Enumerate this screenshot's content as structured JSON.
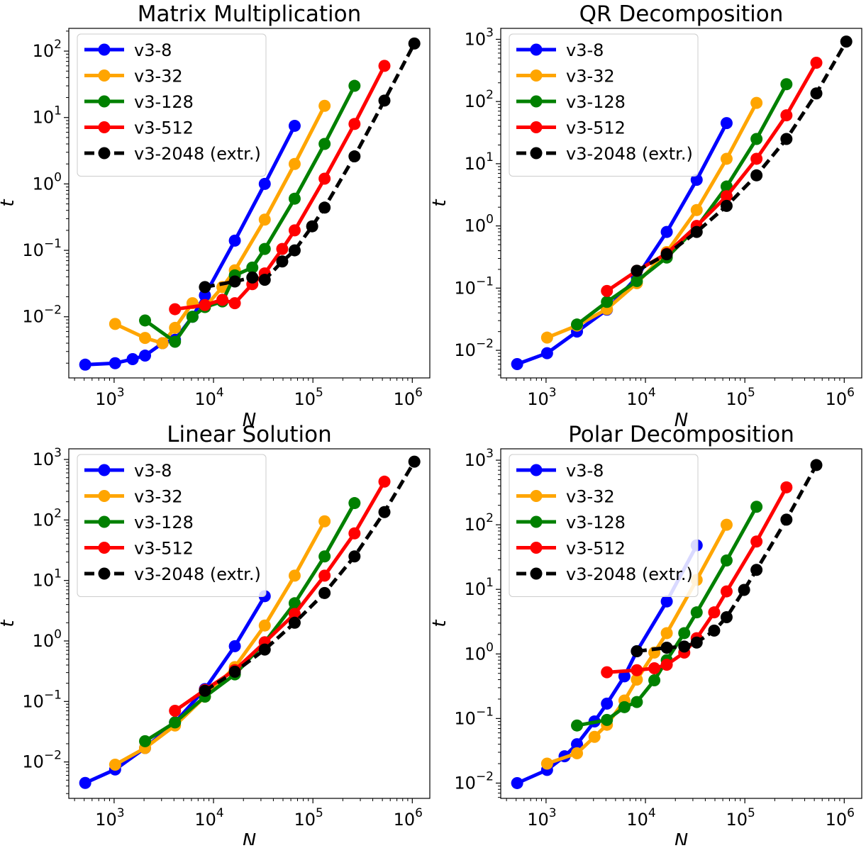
{
  "figure": {
    "background": "#ffffff"
  },
  "chart_data": [
    {
      "type": "line",
      "title": "Matrix Multiplication",
      "xlabel": "N",
      "ylabel": "t",
      "xscale": "log",
      "yscale": "log",
      "xlim": [
        350,
        1500000
      ],
      "ylim": [
        0.0012,
        220
      ],
      "xticks": [
        {
          "value": 1000,
          "label": "10",
          "exp": "3"
        },
        {
          "value": 10000,
          "label": "10",
          "exp": "4"
        },
        {
          "value": 100000,
          "label": "10",
          "exp": "5"
        },
        {
          "value": 1000000,
          "label": "10",
          "exp": "6"
        }
      ],
      "yticks": [
        {
          "value": 0.01,
          "label": "10",
          "exp": "−2"
        },
        {
          "value": 0.1,
          "label": "10",
          "exp": "−1"
        },
        {
          "value": 1,
          "label": "10",
          "exp": "0"
        },
        {
          "value": 10,
          "label": "10",
          "exp": "1"
        },
        {
          "value": 100,
          "label": "10",
          "exp": "2"
        }
      ],
      "grid": false,
      "legend": "top-left",
      "series": [
        {
          "name": "v3-8",
          "color": "#0000ff",
          "dash": false,
          "x": [
            512,
            1024,
            1536,
            2048,
            3072,
            4096,
            6144,
            8192,
            16384,
            32768,
            65536
          ],
          "y": [
            0.0019,
            0.002,
            0.0023,
            0.0026,
            0.004,
            0.0045,
            0.01,
            0.021,
            0.14,
            1.0,
            7.5
          ]
        },
        {
          "name": "v3-32",
          "color": "#ffa500",
          "dash": false,
          "x": [
            1024,
            2048,
            3072,
            4096,
            6144,
            8192,
            12288,
            16384,
            32768,
            65536,
            131072
          ],
          "y": [
            0.0078,
            0.0048,
            0.004,
            0.0068,
            0.016,
            0.014,
            0.028,
            0.05,
            0.29,
            2.0,
            15
          ]
        },
        {
          "name": "v3-128",
          "color": "#008000",
          "dash": false,
          "x": [
            2048,
            4096,
            6144,
            8192,
            12288,
            16384,
            24576,
            32768,
            65536,
            131072,
            262144
          ],
          "y": [
            0.0088,
            0.0042,
            0.01,
            0.014,
            0.017,
            0.042,
            0.055,
            0.105,
            0.6,
            4.0,
            30
          ]
        },
        {
          "name": "v3-512",
          "color": "#ff0000",
          "dash": false,
          "x": [
            4096,
            8192,
            12288,
            16384,
            24576,
            32768,
            49152,
            65536,
            131072,
            262144,
            524288
          ],
          "y": [
            0.013,
            0.015,
            0.018,
            0.016,
            0.031,
            0.045,
            0.105,
            0.2,
            1.2,
            8.0,
            60
          ]
        },
        {
          "name": "v3-2048 (extr.)",
          "color": "#000000",
          "dash": true,
          "x": [
            8192,
            16384,
            24576,
            32768,
            49152,
            65536,
            98304,
            131072,
            262144,
            524288,
            1048576
          ],
          "y": [
            0.028,
            0.034,
            0.039,
            0.036,
            0.068,
            0.1,
            0.23,
            0.44,
            2.6,
            18,
            130
          ]
        }
      ]
    },
    {
      "type": "line",
      "title": "QR Decomposition",
      "xlabel": "N",
      "ylabel": "t",
      "xscale": "log",
      "yscale": "log",
      "xlim": [
        350,
        1500000
      ],
      "ylim": [
        0.0036,
        1500
      ],
      "xticks": [
        {
          "value": 1000,
          "label": "10",
          "exp": "3"
        },
        {
          "value": 10000,
          "label": "10",
          "exp": "4"
        },
        {
          "value": 100000,
          "label": "10",
          "exp": "5"
        },
        {
          "value": 1000000,
          "label": "10",
          "exp": "6"
        }
      ],
      "yticks": [
        {
          "value": 0.01,
          "label": "10",
          "exp": "−2"
        },
        {
          "value": 0.1,
          "label": "10",
          "exp": "−1"
        },
        {
          "value": 1,
          "label": "10",
          "exp": "0"
        },
        {
          "value": 10,
          "label": "10",
          "exp": "1"
        },
        {
          "value": 100,
          "label": "10",
          "exp": "2"
        },
        {
          "value": 1000,
          "label": "10",
          "exp": "3"
        }
      ],
      "grid": false,
      "legend": "top-left",
      "series": [
        {
          "name": "v3-8",
          "color": "#0000ff",
          "dash": false,
          "x": [
            512,
            1024,
            2048,
            4096,
            8192,
            16384,
            32768,
            65536
          ],
          "y": [
            0.006,
            0.009,
            0.02,
            0.045,
            0.15,
            0.8,
            5.5,
            45
          ]
        },
        {
          "name": "v3-32",
          "color": "#ffa500",
          "dash": false,
          "x": [
            1024,
            2048,
            4096,
            8192,
            16384,
            32768,
            65536,
            131072
          ],
          "y": [
            0.016,
            0.025,
            0.046,
            0.12,
            0.38,
            1.8,
            12,
            95
          ]
        },
        {
          "name": "v3-128",
          "color": "#008000",
          "dash": false,
          "x": [
            2048,
            4096,
            8192,
            16384,
            32768,
            65536,
            131072,
            262144
          ],
          "y": [
            0.026,
            0.06,
            0.13,
            0.31,
            0.95,
            4.3,
            25,
            190
          ]
        },
        {
          "name": "v3-512",
          "color": "#ff0000",
          "dash": false,
          "x": [
            4096,
            8192,
            16384,
            32768,
            65536,
            131072,
            262144,
            524288
          ],
          "y": [
            0.09,
            0.19,
            0.36,
            1.0,
            3.0,
            12,
            60,
            420
          ]
        },
        {
          "name": "v3-2048 (extr.)",
          "color": "#000000",
          "dash": true,
          "x": [
            8192,
            16384,
            32768,
            65536,
            131072,
            262144,
            524288,
            1048576
          ],
          "y": [
            0.19,
            0.35,
            0.8,
            2.1,
            6.5,
            25,
            135,
            920
          ]
        }
      ]
    },
    {
      "type": "line",
      "title": "Linear Solution",
      "xlabel": "N",
      "ylabel": "t",
      "xscale": "log",
      "yscale": "log",
      "xlim": [
        350,
        1500000
      ],
      "ylim": [
        0.0025,
        1500
      ],
      "xticks": [
        {
          "value": 1000,
          "label": "10",
          "exp": "3"
        },
        {
          "value": 10000,
          "label": "10",
          "exp": "4"
        },
        {
          "value": 100000,
          "label": "10",
          "exp": "5"
        },
        {
          "value": 1000000,
          "label": "10",
          "exp": "6"
        }
      ],
      "yticks": [
        {
          "value": 0.01,
          "label": "10",
          "exp": "−2"
        },
        {
          "value": 0.1,
          "label": "10",
          "exp": "−1"
        },
        {
          "value": 1,
          "label": "10",
          "exp": "0"
        },
        {
          "value": 10,
          "label": "10",
          "exp": "1"
        },
        {
          "value": 100,
          "label": "10",
          "exp": "2"
        },
        {
          "value": 1000,
          "label": "10",
          "exp": "3"
        }
      ],
      "grid": false,
      "legend": "top-left",
      "series": [
        {
          "name": "v3-8",
          "color": "#0000ff",
          "dash": false,
          "x": [
            512,
            1024,
            2048,
            4096,
            8192,
            16384,
            32768
          ],
          "y": [
            0.0045,
            0.0075,
            0.017,
            0.045,
            0.16,
            0.82,
            5.5
          ]
        },
        {
          "name": "v3-32",
          "color": "#ffa500",
          "dash": false,
          "x": [
            1024,
            2048,
            4096,
            8192,
            16384,
            32768,
            65536,
            131072
          ],
          "y": [
            0.009,
            0.017,
            0.04,
            0.12,
            0.37,
            1.8,
            12,
            95
          ]
        },
        {
          "name": "v3-128",
          "color": "#008000",
          "dash": false,
          "x": [
            2048,
            4096,
            8192,
            16384,
            32768,
            65536,
            131072,
            262144
          ],
          "y": [
            0.022,
            0.045,
            0.12,
            0.28,
            0.95,
            4.2,
            25,
            190
          ]
        },
        {
          "name": "v3-512",
          "color": "#ff0000",
          "dash": false,
          "x": [
            4096,
            8192,
            16384,
            32768,
            65536,
            131072,
            262144,
            524288
          ],
          "y": [
            0.07,
            0.155,
            0.33,
            0.95,
            2.8,
            12,
            60,
            430
          ]
        },
        {
          "name": "v3-2048 (extr.)",
          "color": "#000000",
          "dash": true,
          "x": [
            8192,
            16384,
            32768,
            65536,
            131072,
            262144,
            524288,
            1048576
          ],
          "y": [
            0.15,
            0.31,
            0.72,
            2.0,
            6.2,
            25,
            135,
            920
          ]
        }
      ]
    },
    {
      "type": "line",
      "title": "Polar Decomposition",
      "xlabel": "N",
      "ylabel": "t",
      "xscale": "log",
      "yscale": "log",
      "xlim": [
        350,
        1500000
      ],
      "ylim": [
        0.0058,
        1500
      ],
      "xticks": [
        {
          "value": 1000,
          "label": "10",
          "exp": "3"
        },
        {
          "value": 10000,
          "label": "10",
          "exp": "4"
        },
        {
          "value": 100000,
          "label": "10",
          "exp": "5"
        },
        {
          "value": 1000000,
          "label": "10",
          "exp": "6"
        }
      ],
      "yticks": [
        {
          "value": 0.01,
          "label": "10",
          "exp": "−2"
        },
        {
          "value": 0.1,
          "label": "10",
          "exp": "−1"
        },
        {
          "value": 1,
          "label": "10",
          "exp": "0"
        },
        {
          "value": 10,
          "label": "10",
          "exp": "1"
        },
        {
          "value": 100,
          "label": "10",
          "exp": "2"
        },
        {
          "value": 1000,
          "label": "10",
          "exp": "3"
        }
      ],
      "grid": false,
      "legend": "top-left",
      "series": [
        {
          "name": "v3-8",
          "color": "#0000ff",
          "dash": false,
          "x": [
            512,
            1024,
            1536,
            2048,
            3072,
            4096,
            6144,
            8192,
            16384,
            32768
          ],
          "y": [
            0.01,
            0.016,
            0.026,
            0.04,
            0.09,
            0.17,
            0.45,
            1.1,
            6.5,
            48
          ]
        },
        {
          "name": "v3-32",
          "color": "#ffa500",
          "dash": false,
          "x": [
            1024,
            2048,
            3072,
            4096,
            6144,
            8192,
            12288,
            16384,
            32768,
            65536
          ],
          "y": [
            0.02,
            0.029,
            0.052,
            0.08,
            0.19,
            0.4,
            1.05,
            2.1,
            14,
            100
          ]
        },
        {
          "name": "v3-128",
          "color": "#008000",
          "dash": false,
          "x": [
            2048,
            4096,
            6144,
            8192,
            12288,
            16384,
            24576,
            32768,
            65536,
            131072
          ],
          "y": [
            0.078,
            0.095,
            0.15,
            0.18,
            0.39,
            0.8,
            2.1,
            4.4,
            28,
            190
          ]
        },
        {
          "name": "v3-512",
          "color": "#ff0000",
          "dash": false,
          "x": [
            4096,
            8192,
            12288,
            16384,
            24576,
            32768,
            49152,
            65536,
            131072,
            262144
          ],
          "y": [
            0.52,
            0.56,
            0.6,
            0.68,
            1.05,
            1.75,
            4.4,
            9.3,
            55,
            380
          ]
        },
        {
          "name": "v3-2048 (extr.)",
          "color": "#000000",
          "dash": true,
          "x": [
            8192,
            16384,
            24576,
            32768,
            49152,
            65536,
            98304,
            131072,
            262144,
            524288
          ],
          "y": [
            1.1,
            1.25,
            1.3,
            1.5,
            2.3,
            3.7,
            9.8,
            20,
            120,
            840
          ]
        }
      ]
    }
  ]
}
